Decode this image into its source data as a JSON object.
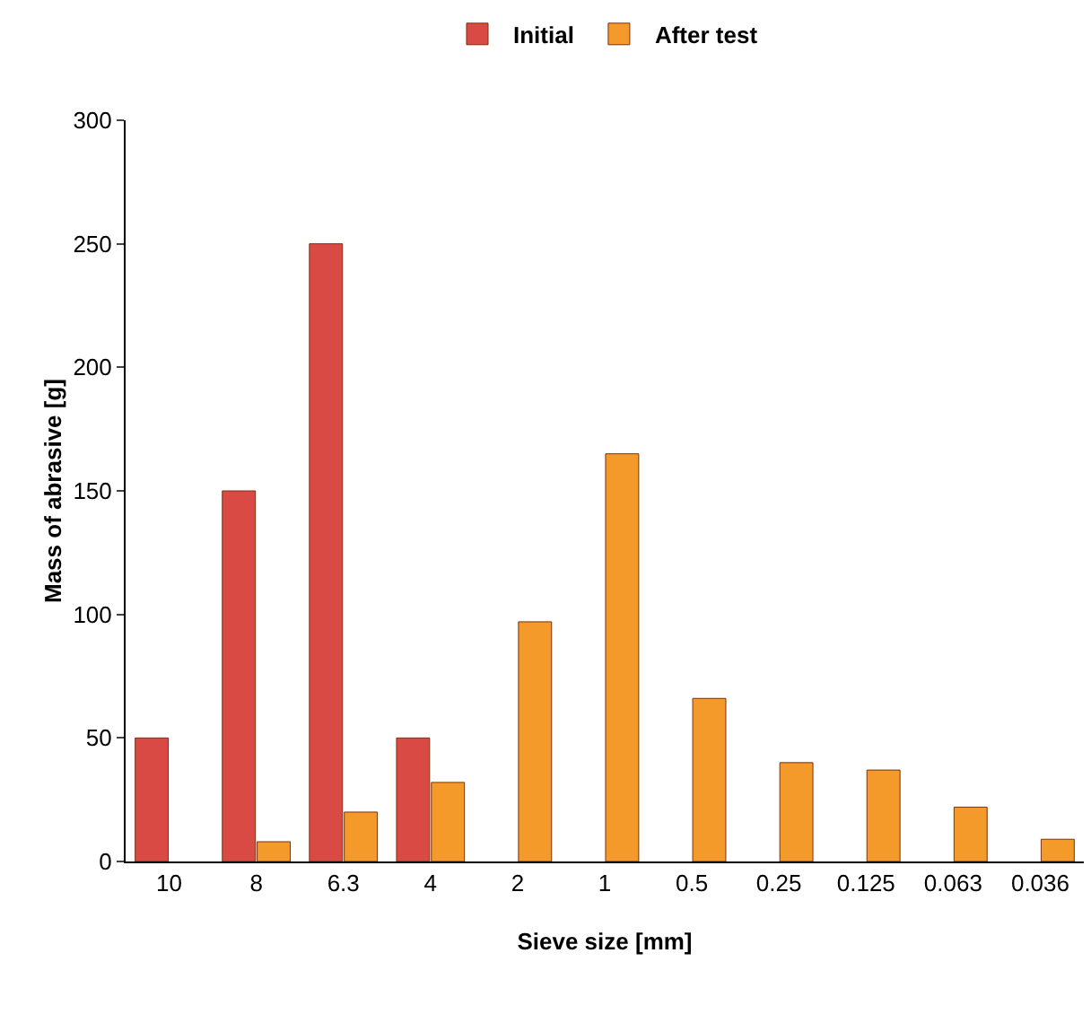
{
  "chart_data": {
    "type": "bar",
    "xlabel": "Sieve size [mm]",
    "ylabel": "Mass of abrasive [g]",
    "categories": [
      "10",
      "8",
      "6.3",
      "4",
      "2",
      "1",
      "0.5",
      "0.25",
      "0.125",
      "0.063",
      "0.036"
    ],
    "series": [
      {
        "name": "Initial",
        "color": "#d94a45",
        "values": [
          50,
          150,
          250,
          50,
          null,
          null,
          null,
          null,
          null,
          null,
          null
        ]
      },
      {
        "name": "After test",
        "color": "#f39a2b",
        "values": [
          null,
          8,
          20,
          32,
          97,
          165,
          66,
          40,
          37,
          22,
          9
        ]
      }
    ],
    "ylim": [
      0,
      300
    ],
    "yticks": [
      0,
      50,
      100,
      150,
      200,
      250,
      300
    ],
    "grid": false,
    "legend": "top"
  }
}
